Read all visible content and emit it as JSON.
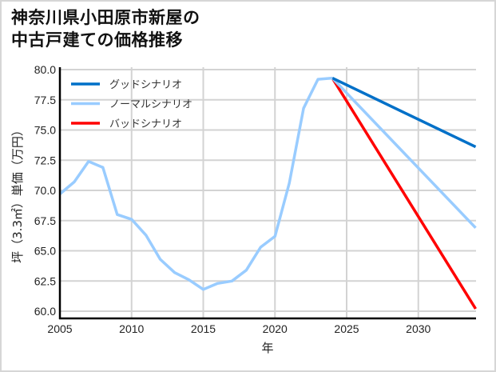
{
  "title_lines": [
    "神奈川県小田原市新屋の",
    "中古戸建ての価格推移"
  ],
  "chart_data": {
    "type": "line",
    "title": "神奈川県小田原市新屋の中古戸建ての価格推移",
    "xlabel": "年",
    "ylabel": "坪（3.3㎡）単価（万円）",
    "xlim": [
      2005,
      2034
    ],
    "ylim": [
      59.5,
      80.2
    ],
    "xticks": [
      2005,
      2010,
      2015,
      2020,
      2025,
      2030
    ],
    "xtick_labels": [
      "2005",
      "2010",
      "2015",
      "2020",
      "2025",
      "2030"
    ],
    "yticks": [
      60.0,
      62.5,
      65.0,
      67.5,
      70.0,
      72.5,
      75.0,
      77.5,
      80.0
    ],
    "ytick_labels": [
      "60.0",
      "62.5",
      "65.0",
      "67.5",
      "70.0",
      "72.5",
      "75.0",
      "77.5",
      "80.0"
    ],
    "grid": true,
    "legend_position": "upper left",
    "historical": {
      "x": [
        2005,
        2006,
        2007,
        2008,
        2009,
        2010,
        2011,
        2012,
        2013,
        2014,
        2015,
        2016,
        2017,
        2018,
        2019,
        2020,
        2021,
        2022,
        2023,
        2024
      ],
      "values": [
        69.7,
        70.7,
        72.4,
        71.9,
        68.0,
        67.6,
        66.3,
        64.3,
        63.2,
        62.6,
        61.8,
        62.3,
        62.5,
        63.4,
        65.3,
        66.2,
        70.6,
        76.8,
        79.2,
        79.3
      ]
    },
    "series": [
      {
        "name": "グッドシナリオ",
        "color": "#0070c8",
        "x": [
          2024,
          2034
        ],
        "values": [
          79.3,
          73.6
        ]
      },
      {
        "name": "ノーマルシナリオ",
        "color": "#99ccff",
        "x": [
          2024,
          2034
        ],
        "values": [
          79.3,
          66.9
        ]
      },
      {
        "name": "バッドシナリオ",
        "color": "#ff0000",
        "x": [
          2024,
          2034
        ],
        "values": [
          79.3,
          60.2
        ]
      }
    ]
  }
}
